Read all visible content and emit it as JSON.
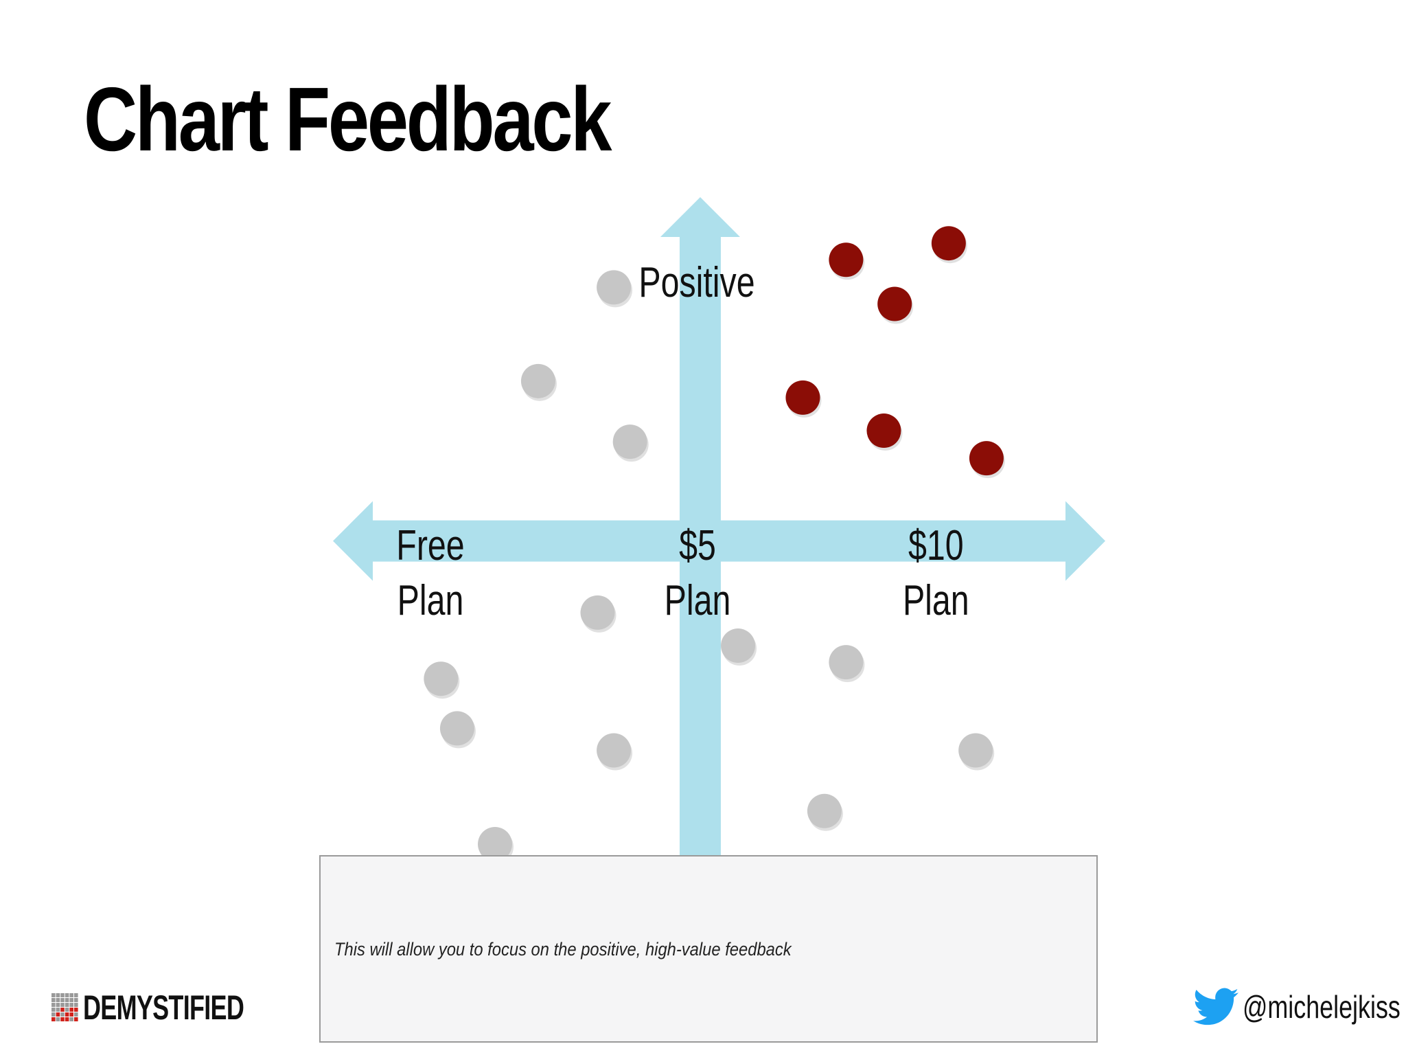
{
  "slide": {
    "title": "Chart Feedback",
    "note": "This will allow you to focus on the positive, high-value feedback",
    "logo_text": "DEMYSTIFIED",
    "twitter_handle": "@michelejkiss"
  },
  "colors": {
    "axis": "#aee0ec",
    "highlight_point": "#8b0d06",
    "other_point": "#c6c6c6",
    "note_bg": "#f5f5f6",
    "twitter_blue": "#1da1f2",
    "logo_red": "#d0221b"
  },
  "chart_data": {
    "type": "scatter",
    "x_axis": {
      "ticks": [
        {
          "value": 0,
          "line1": "Free",
          "line2": "Plan"
        },
        {
          "value": 5,
          "line1": "$5",
          "line2": "Plan"
        },
        {
          "value": 10,
          "line1": "$10",
          "line2": "Plan"
        }
      ],
      "range": [
        -1.8,
        12.5
      ]
    },
    "y_axis": {
      "label": "Positive",
      "range": [
        -5.7,
        6.2
      ]
    },
    "series": [
      {
        "group": "highlighted",
        "points": [
          [
            7.7,
            5.1
          ],
          [
            9.6,
            5.4
          ],
          [
            8.6,
            4.3
          ],
          [
            6.9,
            2.6
          ],
          [
            8.4,
            2.0
          ],
          [
            10.3,
            1.5
          ]
        ]
      },
      {
        "group": "other",
        "points": [
          [
            3.4,
            4.6
          ],
          [
            2.0,
            2.9
          ],
          [
            3.7,
            1.8
          ],
          [
            3.1,
            -1.3
          ],
          [
            5.7,
            -1.9
          ],
          [
            7.7,
            -2.2
          ],
          [
            0.2,
            -2.5
          ],
          [
            0.5,
            -3.4
          ],
          [
            3.4,
            -3.8
          ],
          [
            10.1,
            -3.8
          ],
          [
            7.3,
            -4.9
          ],
          [
            1.2,
            -5.5
          ]
        ]
      }
    ]
  }
}
